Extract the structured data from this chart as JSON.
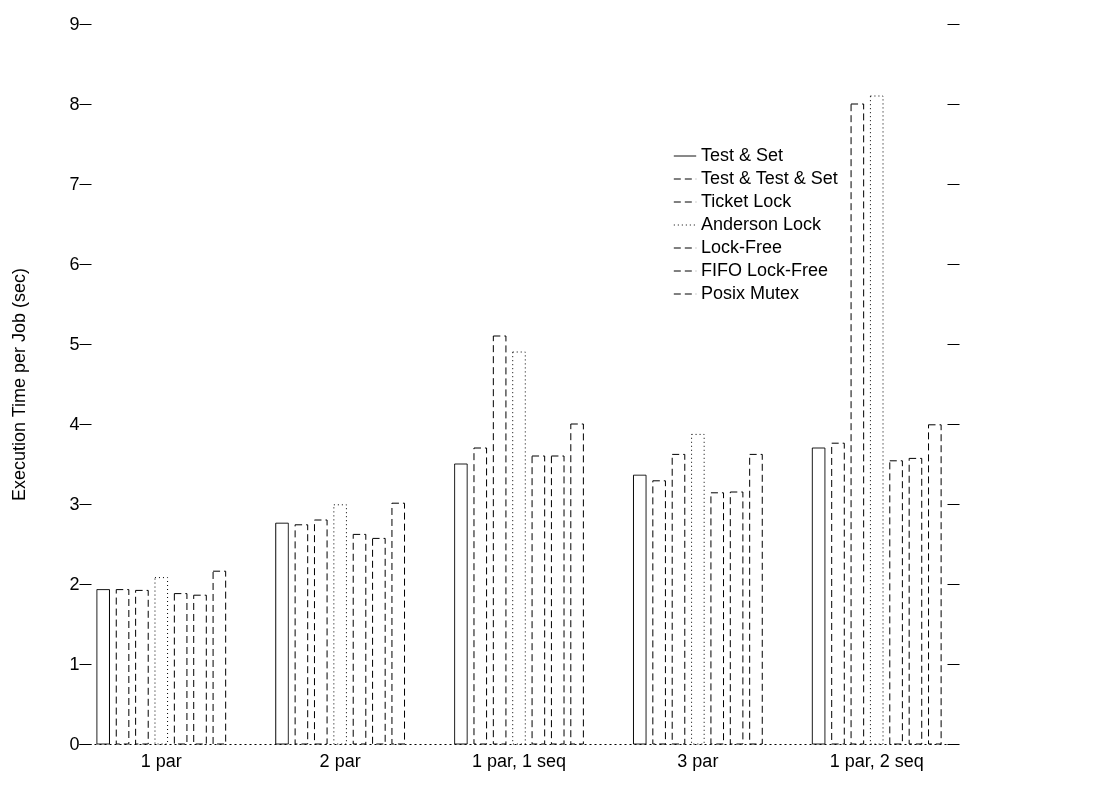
{
  "chart_data": {
    "type": "bar",
    "ylabel": "Execution Time per Job (sec)",
    "categories": [
      "1 par",
      "2 par",
      "1 par, 1 seq",
      "3 par",
      "1 par, 2 seq"
    ],
    "series": [
      {
        "name": "Test & Set",
        "color": "#000000",
        "line_style": "solid",
        "values": [
          1.93,
          2.76,
          3.5,
          3.36,
          3.7
        ]
      },
      {
        "name": "Test & Test & Set",
        "color": "#000000",
        "line_style": "dashed",
        "values": [
          1.93,
          2.74,
          3.7,
          3.29,
          3.76
        ]
      },
      {
        "name": "Ticket Lock",
        "color": "#000000",
        "line_style": "dashed",
        "values": [
          1.92,
          2.8,
          5.1,
          3.62,
          8.0
        ]
      },
      {
        "name": "Anderson Lock",
        "color": "#000000",
        "line_style": "dotted",
        "values": [
          2.08,
          2.99,
          4.9,
          3.87,
          8.1
        ]
      },
      {
        "name": "Lock-Free",
        "color": "#000000",
        "line_style": "dashed",
        "values": [
          1.88,
          2.62,
          3.6,
          3.14,
          3.54
        ]
      },
      {
        "name": "FIFO Lock-Free",
        "color": "#000000",
        "line_style": "dashed",
        "values": [
          1.86,
          2.57,
          3.6,
          3.15,
          3.57
        ]
      },
      {
        "name": "Posix Mutex",
        "color": "#000000",
        "line_style": "dashed",
        "values": [
          2.16,
          3.01,
          4.0,
          3.62,
          3.99
        ]
      }
    ],
    "ylim": [
      0,
      9
    ],
    "yticks": [
      0,
      1,
      2,
      3,
      4,
      5,
      6,
      7,
      8,
      9
    ],
    "grid": false,
    "legend": "top right"
  }
}
